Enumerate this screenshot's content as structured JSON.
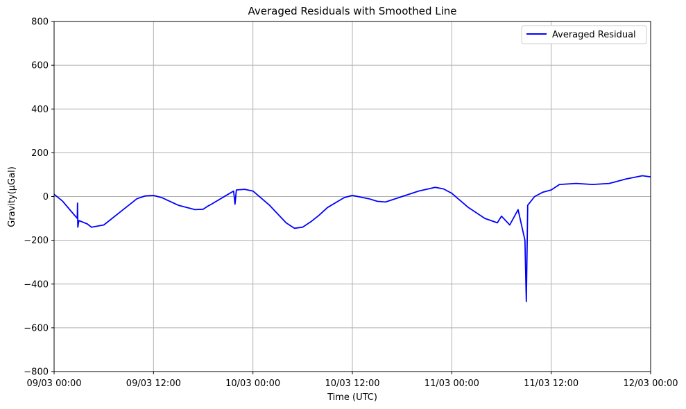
{
  "chart_data": {
    "type": "line",
    "title": "Averaged Residuals with Smoothed Line",
    "xlabel": "Time (UTC)",
    "ylabel": "Gravity(μGal)",
    "x_ticks": [
      "09/03 00:00",
      "09/03 12:00",
      "10/03 00:00",
      "10/03 12:00",
      "11/03 00:00",
      "11/03 12:00",
      "12/03 00:00"
    ],
    "y_ticks": [
      "800",
      "600",
      "400",
      "200",
      "0",
      "−200",
      "−400",
      "−600",
      "−800"
    ],
    "xlim": [
      "09/03 00:00",
      "12/03 00:00"
    ],
    "ylim": [
      -800,
      800
    ],
    "grid": true,
    "legend_position": "top-right",
    "series": [
      {
        "name": "Averaged Residual",
        "color": "#0000ff",
        "points": [
          [
            "09/03 00:00",
            10
          ],
          [
            "09/03 01:00",
            -20
          ],
          [
            "09/03 02:00",
            -65
          ],
          [
            "09/03 02:48",
            -100
          ],
          [
            "09/03 02:50",
            -30
          ],
          [
            "09/03 02:52",
            -140
          ],
          [
            "09/03 03:00",
            -110
          ],
          [
            "09/03 04:00",
            -125
          ],
          [
            "09/03 04:30",
            -140
          ],
          [
            "09/03 06:00",
            -130
          ],
          [
            "09/03 08:00",
            -70
          ],
          [
            "09/03 10:00",
            -10
          ],
          [
            "09/03 11:00",
            3
          ],
          [
            "09/03 12:00",
            5
          ],
          [
            "09/03 13:00",
            -5
          ],
          [
            "09/03 15:00",
            -40
          ],
          [
            "09/03 17:00",
            -60
          ],
          [
            "09/03 18:00",
            -58
          ],
          [
            "09/03 18:30",
            -45
          ],
          [
            "09/03 19:00",
            -35
          ],
          [
            "09/03 21:00",
            10
          ],
          [
            "09/03 21:40",
            25
          ],
          [
            "09/03 21:50",
            -35
          ],
          [
            "09/03 22:00",
            30
          ],
          [
            "09/03 23:00",
            33
          ],
          [
            "10/03 00:00",
            25
          ],
          [
            "10/03 02:00",
            -40
          ],
          [
            "10/03 04:00",
            -120
          ],
          [
            "10/03 05:00",
            -145
          ],
          [
            "10/03 06:00",
            -140
          ],
          [
            "10/03 07:00",
            -115
          ],
          [
            "10/03 08:00",
            -85
          ],
          [
            "10/03 09:00",
            -50
          ],
          [
            "10/03 11:00",
            -5
          ],
          [
            "10/03 12:00",
            5
          ],
          [
            "10/03 14:00",
            -10
          ],
          [
            "10/03 15:00",
            -22
          ],
          [
            "10/03 16:00",
            -25
          ],
          [
            "10/03 18:00",
            0
          ],
          [
            "10/03 20:00",
            25
          ],
          [
            "10/03 22:00",
            42
          ],
          [
            "10/03 23:00",
            35
          ],
          [
            "11/03 00:00",
            15
          ],
          [
            "11/03 02:00",
            -50
          ],
          [
            "11/03 04:00",
            -100
          ],
          [
            "11/03 05:30",
            -120
          ],
          [
            "11/03 06:00",
            -90
          ],
          [
            "11/03 07:00",
            -130
          ],
          [
            "11/03 08:00",
            -60
          ],
          [
            "11/03 08:50",
            -200
          ],
          [
            "11/03 09:00",
            -480
          ],
          [
            "11/03 09:10",
            -40
          ],
          [
            "11/03 10:00",
            0
          ],
          [
            "11/03 11:00",
            20
          ],
          [
            "11/03 12:00",
            30
          ],
          [
            "11/03 13:00",
            55
          ],
          [
            "11/03 15:00",
            60
          ],
          [
            "11/03 17:00",
            55
          ],
          [
            "11/03 19:00",
            60
          ],
          [
            "11/03 21:00",
            80
          ],
          [
            "11/03 23:00",
            95
          ],
          [
            "12/03 00:00",
            90
          ]
        ]
      }
    ]
  }
}
